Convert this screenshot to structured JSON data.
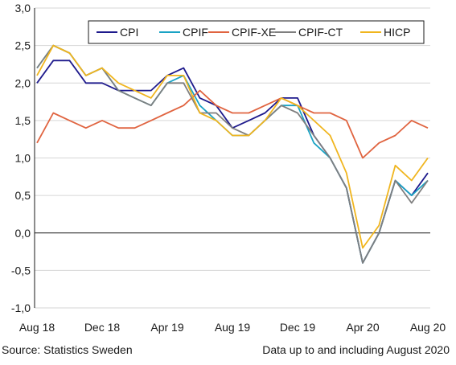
{
  "chart_data": {
    "type": "line",
    "title": "",
    "xlabel": "",
    "ylabel": "",
    "ylim": [
      -1.0,
      3.0
    ],
    "yticks": [
      "3,0",
      "2,5",
      "2,0",
      "1,5",
      "1,0",
      "0,5",
      "0,0",
      "-0,5",
      "-1,0"
    ],
    "ytick_values": [
      3.0,
      2.5,
      2.0,
      1.5,
      1.0,
      0.5,
      0.0,
      -0.5,
      -1.0
    ],
    "grid": "horizontal",
    "legend_position": "top-right",
    "x": [
      "2018-08",
      "2018-09",
      "2018-10",
      "2018-11",
      "2018-12",
      "2019-01",
      "2019-02",
      "2019-03",
      "2019-04",
      "2019-05",
      "2019-06",
      "2019-07",
      "2019-08",
      "2019-09",
      "2019-10",
      "2019-11",
      "2019-12",
      "2020-01",
      "2020-02",
      "2020-03",
      "2020-04",
      "2020-05",
      "2020-06",
      "2020-07",
      "2020-08"
    ],
    "xtick_labels": [
      {
        "label": "Aug 18",
        "index": 0
      },
      {
        "label": "Dec 18",
        "index": 4
      },
      {
        "label": "Apr 19",
        "index": 8
      },
      {
        "label": "Aug 19",
        "index": 12
      },
      {
        "label": "Dec 19",
        "index": 16
      },
      {
        "label": "Apr 20",
        "index": 20
      },
      {
        "label": "Aug 20",
        "index": 24
      }
    ],
    "series": [
      {
        "name": "CPI",
        "color": "#1e1a8c",
        "values": [
          2.0,
          2.3,
          2.3,
          2.0,
          2.0,
          1.9,
          1.9,
          1.9,
          2.1,
          2.2,
          1.8,
          1.7,
          1.4,
          1.5,
          1.6,
          1.8,
          1.8,
          1.3,
          1.0,
          0.6,
          -0.4,
          0.0,
          0.7,
          0.5,
          0.8
        ]
      },
      {
        "name": "CPIF",
        "color": "#1aa3c4",
        "values": [
          2.2,
          2.5,
          2.4,
          2.1,
          2.2,
          1.9,
          1.8,
          1.7,
          2.0,
          2.1,
          1.7,
          1.5,
          1.3,
          1.3,
          1.5,
          1.7,
          1.7,
          1.2,
          1.0,
          0.6,
          -0.4,
          0.0,
          0.7,
          0.5,
          0.7
        ]
      },
      {
        "name": "CPIF-XE",
        "color": "#e06440",
        "values": [
          1.2,
          1.6,
          1.5,
          1.4,
          1.5,
          1.4,
          1.4,
          1.5,
          1.6,
          1.7,
          1.9,
          1.7,
          1.6,
          1.6,
          1.7,
          1.8,
          1.7,
          1.6,
          1.6,
          1.5,
          1.0,
          1.2,
          1.3,
          1.5,
          1.4
        ]
      },
      {
        "name": "CPIF-CT",
        "color": "#7f7f7f",
        "values": [
          2.2,
          2.5,
          2.4,
          2.1,
          2.2,
          1.9,
          1.8,
          1.7,
          2.0,
          2.0,
          1.6,
          1.6,
          1.4,
          1.3,
          1.5,
          1.7,
          1.6,
          1.3,
          1.0,
          0.6,
          -0.4,
          0.0,
          0.7,
          0.4,
          0.7
        ]
      },
      {
        "name": "HICP",
        "color": "#f0b51e",
        "values": [
          2.1,
          2.5,
          2.4,
          2.1,
          2.2,
          2.0,
          1.9,
          1.8,
          2.1,
          2.1,
          1.6,
          1.5,
          1.3,
          1.3,
          1.5,
          1.8,
          1.7,
          1.5,
          1.3,
          0.8,
          -0.2,
          0.1,
          0.9,
          0.7,
          1.0
        ]
      }
    ]
  },
  "footer": {
    "source": "Source: Statistics Sweden",
    "note": "Data up to and including August 2020"
  }
}
